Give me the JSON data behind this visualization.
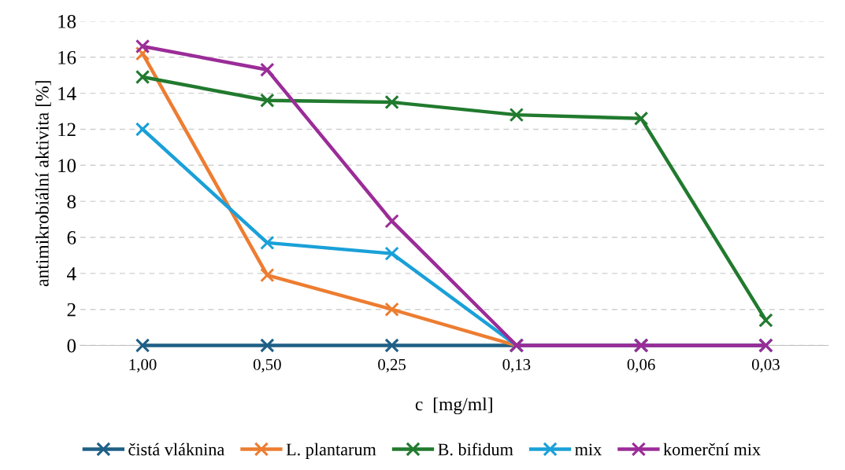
{
  "chart_data": {
    "type": "line",
    "xlabel": "c  [mg/ml]",
    "ylabel": "antimikrobiální aktivita [%]",
    "categories": [
      "1,00",
      "0,50",
      "0,25",
      "0,13",
      "0,06",
      "0,03"
    ],
    "series": [
      {
        "name": "čistá vláknina",
        "color": "#1f5f86",
        "values": [
          0,
          0,
          0,
          0,
          0,
          0
        ]
      },
      {
        "name": "L. plantarum",
        "color": "#ed7d31",
        "values": [
          16.2,
          3.9,
          2.0,
          0,
          0,
          0
        ]
      },
      {
        "name": "B. bifidum",
        "color": "#217a2e",
        "values": [
          14.9,
          13.6,
          13.5,
          12.8,
          12.6,
          1.4
        ]
      },
      {
        "name": "mix",
        "color": "#1aa0d8",
        "values": [
          12.0,
          5.7,
          5.1,
          0,
          0,
          0
        ]
      },
      {
        "name": "komerční mix",
        "color": "#9b2c98",
        "values": [
          16.6,
          15.3,
          6.9,
          0,
          0,
          0
        ]
      }
    ],
    "ylim": [
      0,
      18
    ],
    "yticks": [
      0,
      2,
      4,
      6,
      8,
      10,
      12,
      14,
      16,
      18
    ],
    "grid": "y",
    "legend": "bottom",
    "marker": "cross",
    "line_style": "solid"
  }
}
